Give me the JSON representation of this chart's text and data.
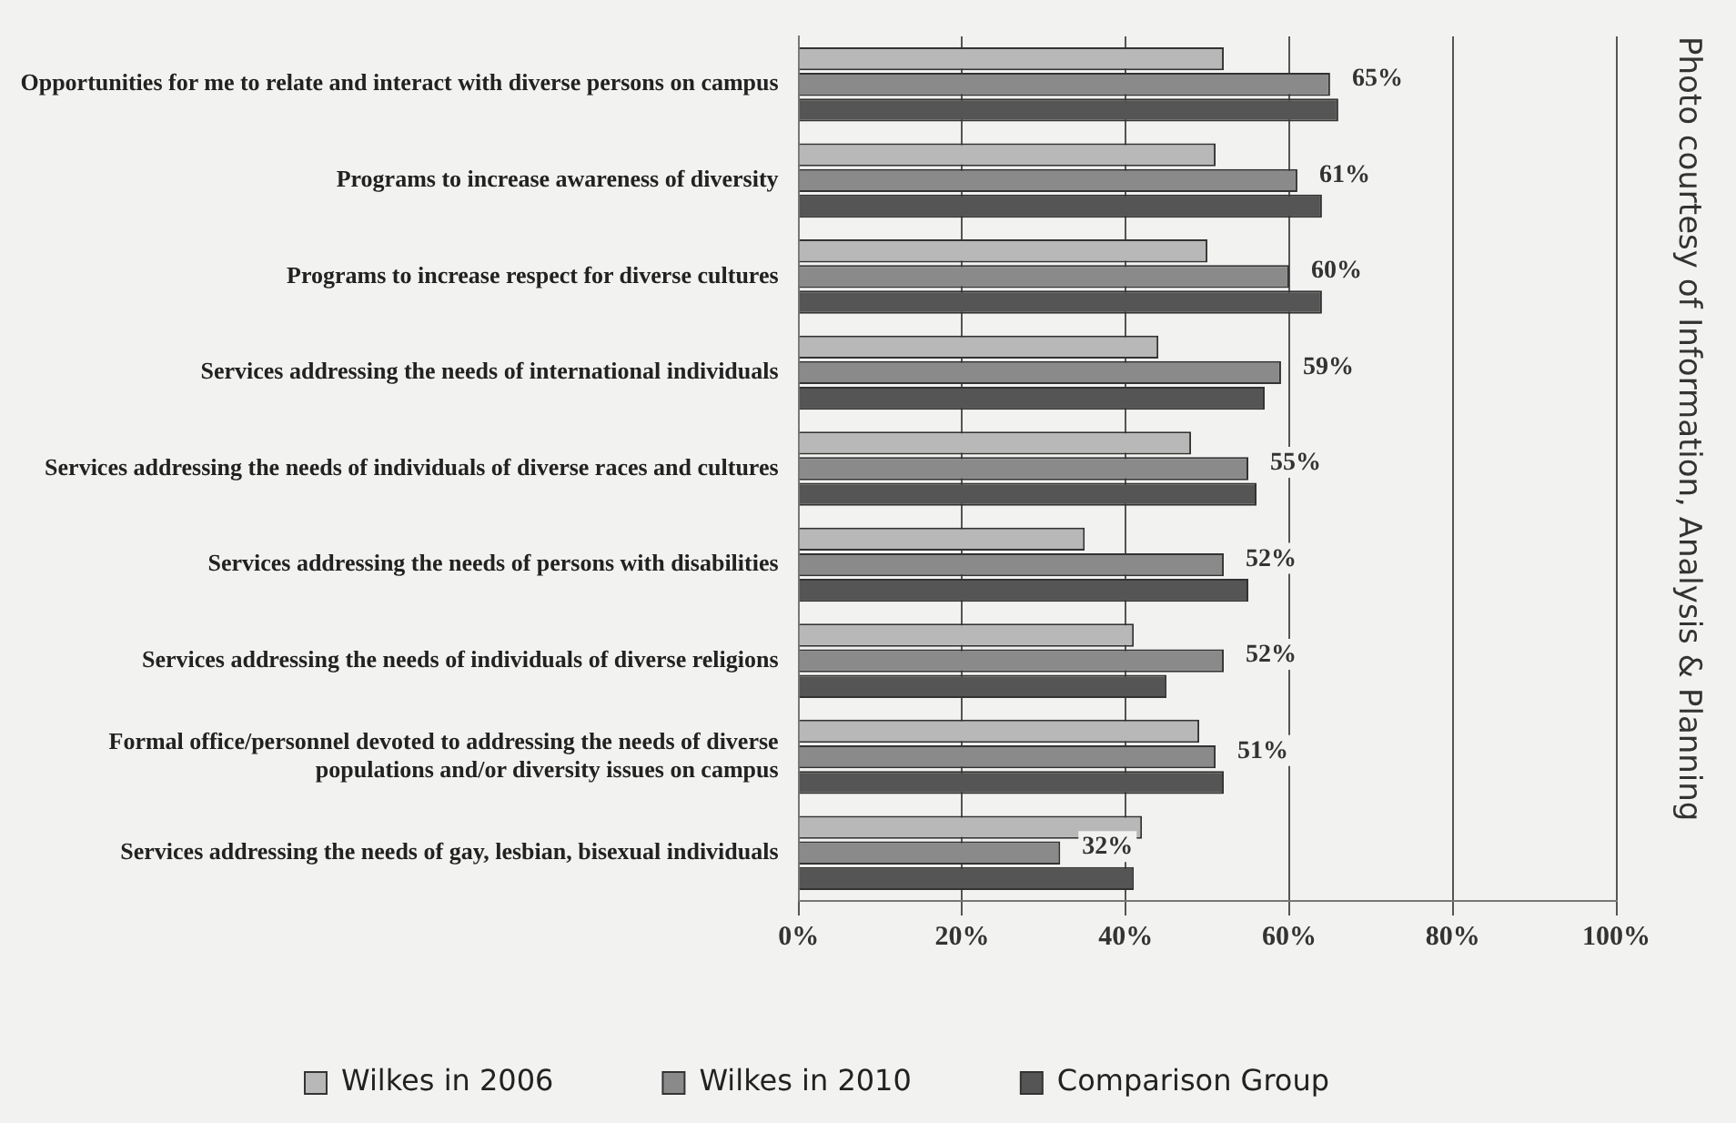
{
  "chart_data": {
    "type": "bar",
    "orientation": "horizontal",
    "categories": [
      "Opportunities for me to relate and interact with diverse persons on campus",
      "Programs to increase awareness of diversity",
      "Programs to increase respect for diverse cultures",
      "Services addressing the needs of international individuals",
      "Services addressing the needs of individuals of diverse races and cultures",
      "Services addressing the needs of persons with disabilities",
      "Services addressing the needs of individuals of diverse religions",
      "Formal office/personnel devoted to addressing the needs of diverse populations and/or diversity issues on campus",
      "Services addressing the needs of gay, lesbian, bisexual individuals"
    ],
    "series": [
      {
        "name": "Wilkes in 2006",
        "color": "#b8b8b8",
        "values": [
          52,
          51,
          50,
          44,
          48,
          35,
          41,
          49,
          42
        ]
      },
      {
        "name": "Wilkes in 2010",
        "color": "#8a8a8a",
        "values": [
          65,
          61,
          60,
          59,
          55,
          52,
          52,
          51,
          32
        ],
        "value_labels": [
          "65%",
          "61%",
          "60%",
          "59%",
          "55%",
          "52%",
          "52%",
          "51%",
          "32%"
        ]
      },
      {
        "name": "Comparison Group",
        "color": "#555555",
        "values": [
          66,
          64,
          64,
          57,
          56,
          55,
          45,
          52,
          41
        ]
      }
    ],
    "xlim": [
      0,
      100
    ],
    "xticks": [
      {
        "value": 0,
        "label": "0%"
      },
      {
        "value": 20,
        "label": "20%"
      },
      {
        "value": 40,
        "label": "40%"
      },
      {
        "value": 60,
        "label": "60%"
      },
      {
        "value": 80,
        "label": "80%"
      },
      {
        "value": 100,
        "label": "100%"
      }
    ],
    "grid": "x",
    "legend": "bottom",
    "annotations": [
      "Photo courtesy of Information, Analysis & Planning"
    ]
  }
}
